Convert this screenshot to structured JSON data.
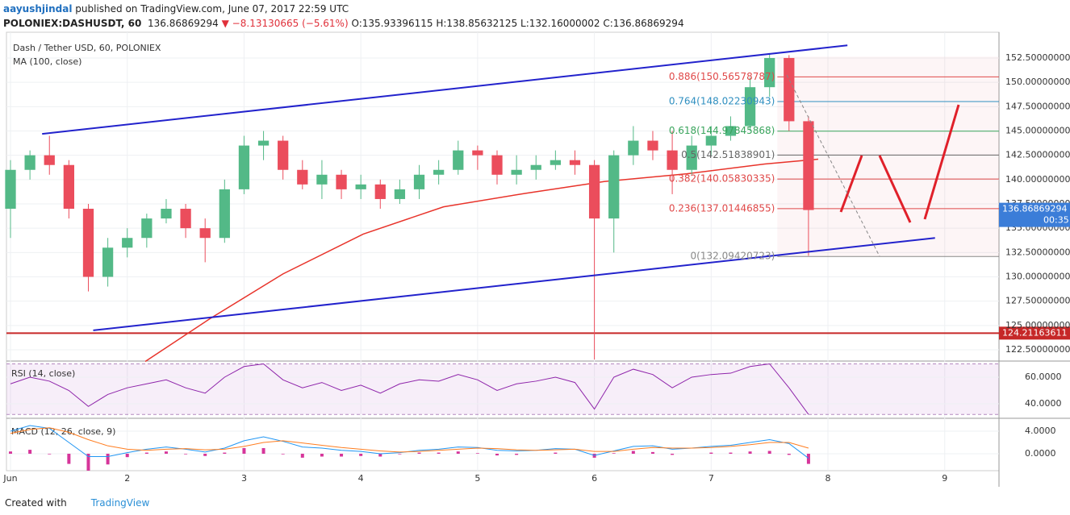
{
  "header": {
    "author": "aayushjindal",
    "published": "published on TradingView.com, June 07, 2017 22:59 UTC",
    "symbol": "POLONIEX:DASHUSDT, 60",
    "last": "136.86869294",
    "change": "▼ −8.13130665 (−5.61%)",
    "ohlc": "O:135.93396115 H:138.85632125 L:132.16000002 C:136.86869294"
  },
  "footer": {
    "created": "Created with",
    "brand": "TradingView"
  },
  "chart_data": {
    "type": "candlestick",
    "title": "Dash / Tether USD, 60, POLONIEX",
    "x": [
      0,
      4,
      8,
      12,
      16,
      20,
      24,
      28,
      32,
      36,
      40,
      44,
      48,
      52,
      56,
      60,
      64,
      68,
      72,
      76,
      80,
      84,
      88,
      92,
      96,
      100,
      104,
      108,
      112,
      116,
      120,
      124,
      128,
      132,
      136,
      140,
      144,
      148,
      152,
      156,
      160,
      164
    ],
    "open": [
      137,
      141,
      142.5,
      141.5,
      137,
      130,
      133,
      134,
      136,
      137,
      135,
      134,
      139,
      143.5,
      144,
      141,
      139.5,
      140.5,
      139,
      139.5,
      138,
      139,
      140.5,
      141,
      143,
      142.5,
      140.5,
      141,
      141.5,
      142,
      141.5,
      136,
      142.5,
      144,
      143,
      141,
      143.5,
      144.5,
      145.5,
      149.5,
      152.5,
      146
    ],
    "high": [
      142,
      143,
      144.5,
      142,
      137.5,
      134,
      135,
      136.5,
      138,
      137.5,
      136,
      140,
      144.5,
      145,
      144.5,
      142,
      142,
      141,
      140.5,
      140,
      140,
      141.5,
      142,
      144,
      143.5,
      143,
      142.5,
      142.5,
      143,
      143,
      142,
      143,
      145.5,
      145,
      145,
      144.5,
      145.5,
      146.5,
      150.5,
      153,
      152.8,
      146.5
    ],
    "low": [
      134,
      140,
      140.5,
      136,
      128.5,
      129,
      132,
      133,
      135.5,
      134,
      131.5,
      133.5,
      138.5,
      142,
      140,
      139,
      138,
      138,
      138,
      137,
      137.5,
      138,
      139.5,
      140.5,
      141,
      139.5,
      139.5,
      140,
      141,
      140.5,
      121.5,
      132.5,
      141.5,
      142,
      138.5,
      140.5,
      142.5,
      144,
      145,
      148.5,
      145,
      132.16
    ],
    "close": [
      141,
      142.5,
      141.5,
      137,
      130,
      133,
      134,
      136,
      137,
      135,
      134,
      139,
      143.5,
      144,
      141,
      139.5,
      140.5,
      139,
      139.5,
      138,
      139,
      140.5,
      141,
      143,
      142.5,
      140.5,
      141,
      141.5,
      142,
      141.5,
      136,
      142.5,
      144,
      143,
      141,
      143.5,
      144.5,
      145.5,
      149.5,
      152.5,
      146,
      136.87
    ],
    "up_color": "#53b987",
    "down_color": "#eb4d5c",
    "xlim": [
      -0.83,
      203.15
    ],
    "xticks": [
      {
        "value": 0,
        "label": "Jun"
      },
      {
        "value": 24,
        "label": "2"
      },
      {
        "value": 48,
        "label": "3"
      },
      {
        "value": 72,
        "label": "4"
      },
      {
        "value": 96,
        "label": "5"
      },
      {
        "value": 120,
        "label": "6"
      },
      {
        "value": 144,
        "label": "7"
      },
      {
        "value": 168,
        "label": "8"
      },
      {
        "value": 192,
        "label": "9"
      }
    ],
    "ylim": [
      121.34,
      155.15
    ],
    "yticks": [
      {
        "value": 122.5,
        "label": "122.50000000"
      },
      {
        "value": 125,
        "label": "125.00000000"
      },
      {
        "value": 127.5,
        "label": "127.50000000"
      },
      {
        "value": 130,
        "label": "130.00000000"
      },
      {
        "value": 132.5,
        "label": "132.50000000"
      },
      {
        "value": 135,
        "label": "135.00000000"
      },
      {
        "value": 137.5,
        "label": "137.50000000"
      },
      {
        "value": 140,
        "label": "140.00000000"
      },
      {
        "value": 142.5,
        "label": "142.50000000"
      },
      {
        "value": 145,
        "label": "145.00000000"
      },
      {
        "value": 147.5,
        "label": "147.50000000"
      },
      {
        "value": 150,
        "label": "150.00000000"
      },
      {
        "value": 152.5,
        "label": "152.50000000"
      }
    ],
    "ma": {
      "name": "MA (100, close)",
      "color": "#e8332a",
      "x": [
        27.7,
        41,
        56,
        72.5,
        89,
        106,
        122,
        139,
        155,
        166
      ],
      "values": [
        121.3,
        125.7,
        130.3,
        134.4,
        137.2,
        138.6,
        139.8,
        140.6,
        141.6,
        142.1
      ]
    },
    "last_price": {
      "value": 136.86869294,
      "label": "136.86869294",
      "countdown": "00:35",
      "color": "#3b7dd8"
    },
    "hline": {
      "value": 124.21163611,
      "label": "124.21163611",
      "color": "#c62828"
    },
    "trendlines": [
      {
        "x": [
          6.5,
          172
        ],
        "values": [
          144.7,
          153.8
        ],
        "color": "#2222cc"
      },
      {
        "x": [
          17,
          190
        ],
        "values": [
          124.5,
          134
        ],
        "color": "#2222cc"
      }
    ],
    "fib": {
      "x": [
        157.6,
        203.15
      ],
      "levels": [
        {
          "value": 132.09420723,
          "label": "0(132.09420723)",
          "color": "#888888"
        },
        {
          "value": 137.01446855,
          "label": "0.236(137.01446855)",
          "color": "#e04848"
        },
        {
          "value": 140.05830335,
          "label": "0.382(140.05830335)",
          "color": "#e04848"
        },
        {
          "value": 142.51838901,
          "label": "0.5(142.51838901)",
          "color": "#666666"
        },
        {
          "value": 144.97845868,
          "label": "0.618(144.97845868)",
          "color": "#3aa55d"
        },
        {
          "value": 148.02230943,
          "label": "0.764(148.02230943)",
          "color": "#2f8fc0"
        },
        {
          "value": 150.56578787,
          "label": "0.886(150.56578787)",
          "color": "#e04848"
        }
      ]
    },
    "rsi": {
      "name": "RSI (14, close)",
      "color": "#8e24aa",
      "ylim": [
        29.7,
        70.9
      ],
      "band": [
        70,
        32
      ],
      "yticks": [
        {
          "value": 40,
          "label": "40.0000"
        },
        {
          "value": 60,
          "label": "60.0000"
        }
      ],
      "values": [
        55,
        60,
        57,
        50,
        38,
        47,
        52,
        55,
        58,
        52,
        48,
        60,
        68,
        70,
        58,
        52,
        56,
        50,
        54,
        48,
        55,
        58,
        57,
        62,
        58,
        50,
        55,
        57,
        60,
        56,
        36,
        60,
        66,
        62,
        52,
        60,
        62,
        63,
        68,
        70,
        52,
        32
      ]
    },
    "macd": {
      "name": "MACD (12, 26, close, 9)",
      "ylim": [
        -2.86,
        6.14
      ],
      "macd_color": "#2196f3",
      "signal_color": "#ff7d20",
      "hist_color": "#d6359a",
      "yticks": [
        {
          "value": 0,
          "label": "0.0000"
        },
        {
          "value": 4,
          "label": "4.0000"
        }
      ],
      "macd": [
        4,
        5,
        4.5,
        2,
        -0.5,
        -0.5,
        0.2,
        0.8,
        1.2,
        0.8,
        0.3,
        1,
        2.3,
        3,
        2.2,
        1.2,
        1,
        0.6,
        0.4,
        0,
        0.2,
        0.6,
        0.8,
        1.2,
        1.1,
        0.6,
        0.5,
        0.6,
        0.9,
        0.8,
        -0.3,
        0.5,
        1.3,
        1.4,
        0.8,
        1,
        1.3,
        1.5,
        2,
        2.5,
        1.8,
        -0.8
      ],
      "signal": [
        3.6,
        4.3,
        4.6,
        3.8,
        2.5,
        1.4,
        0.8,
        0.6,
        0.8,
        0.9,
        0.7,
        0.8,
        1.3,
        2,
        2.3,
        1.9,
        1.5,
        1.1,
        0.8,
        0.5,
        0.3,
        0.4,
        0.6,
        0.8,
        1,
        0.9,
        0.7,
        0.6,
        0.7,
        0.8,
        0.4,
        0.4,
        0.8,
        1.1,
        1,
        1,
        1.1,
        1.3,
        1.6,
        2,
        2,
        1
      ],
      "hist": [
        0.4,
        0.7,
        -0.1,
        -1.8,
        -3,
        -1.9,
        -0.6,
        0.2,
        0.4,
        -0.1,
        -0.4,
        0.2,
        1,
        1,
        -0.1,
        -0.7,
        -0.5,
        -0.5,
        -0.4,
        -0.5,
        -0.1,
        0.2,
        0.2,
        0.4,
        0.1,
        -0.3,
        -0.2,
        0,
        0.2,
        0,
        -0.7,
        0.1,
        0.5,
        0.3,
        -0.2,
        0,
        0.2,
        0.2,
        0.4,
        0.5,
        -0.2,
        -1.8
      ]
    }
  }
}
